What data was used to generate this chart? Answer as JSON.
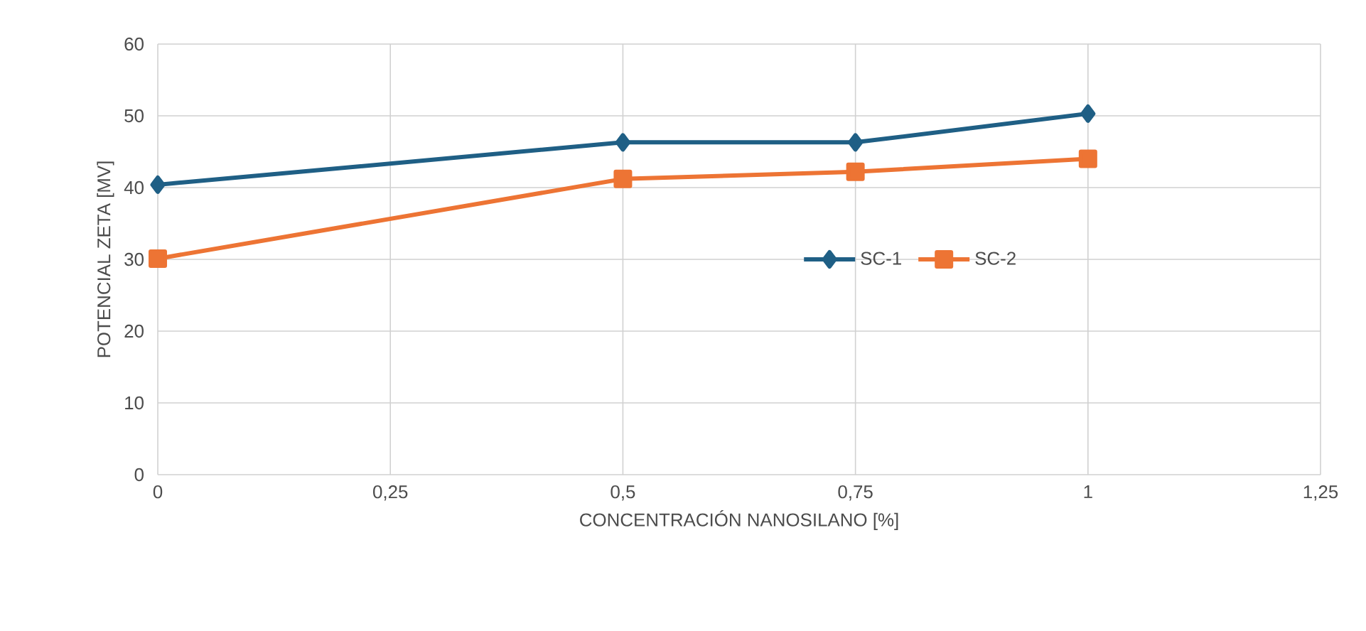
{
  "chart_data": {
    "type": "line",
    "xlabel": "CONCENTRACIÓN NANOSILANO [%]",
    "ylabel": "POTENCIAL ZETA [MV]",
    "x": [
      0,
      0.5,
      0.75,
      1
    ],
    "series": [
      {
        "name": "SC-1",
        "color": "#1f5f85",
        "marker": "diamond",
        "values": [
          40.4,
          46.3,
          46.3,
          50.3
        ]
      },
      {
        "name": "SC-2",
        "color": "#ed7434",
        "marker": "square",
        "values": [
          30.1,
          41.2,
          42.2,
          44.0
        ]
      }
    ],
    "xlim": [
      0,
      1.25
    ],
    "ylim": [
      0,
      60
    ],
    "xticks": [
      0,
      {
        "value": 0.25,
        "label": "0,25"
      },
      {
        "value": 0.5,
        "label": "0,5"
      },
      {
        "value": 0.75,
        "label": "0,75"
      },
      1,
      {
        "value": 1.25,
        "label": "1,25"
      }
    ],
    "yticks": [
      0,
      10,
      20,
      30,
      40,
      50,
      60
    ],
    "grid": true,
    "legend": "center",
    "line_style": "solid"
  }
}
